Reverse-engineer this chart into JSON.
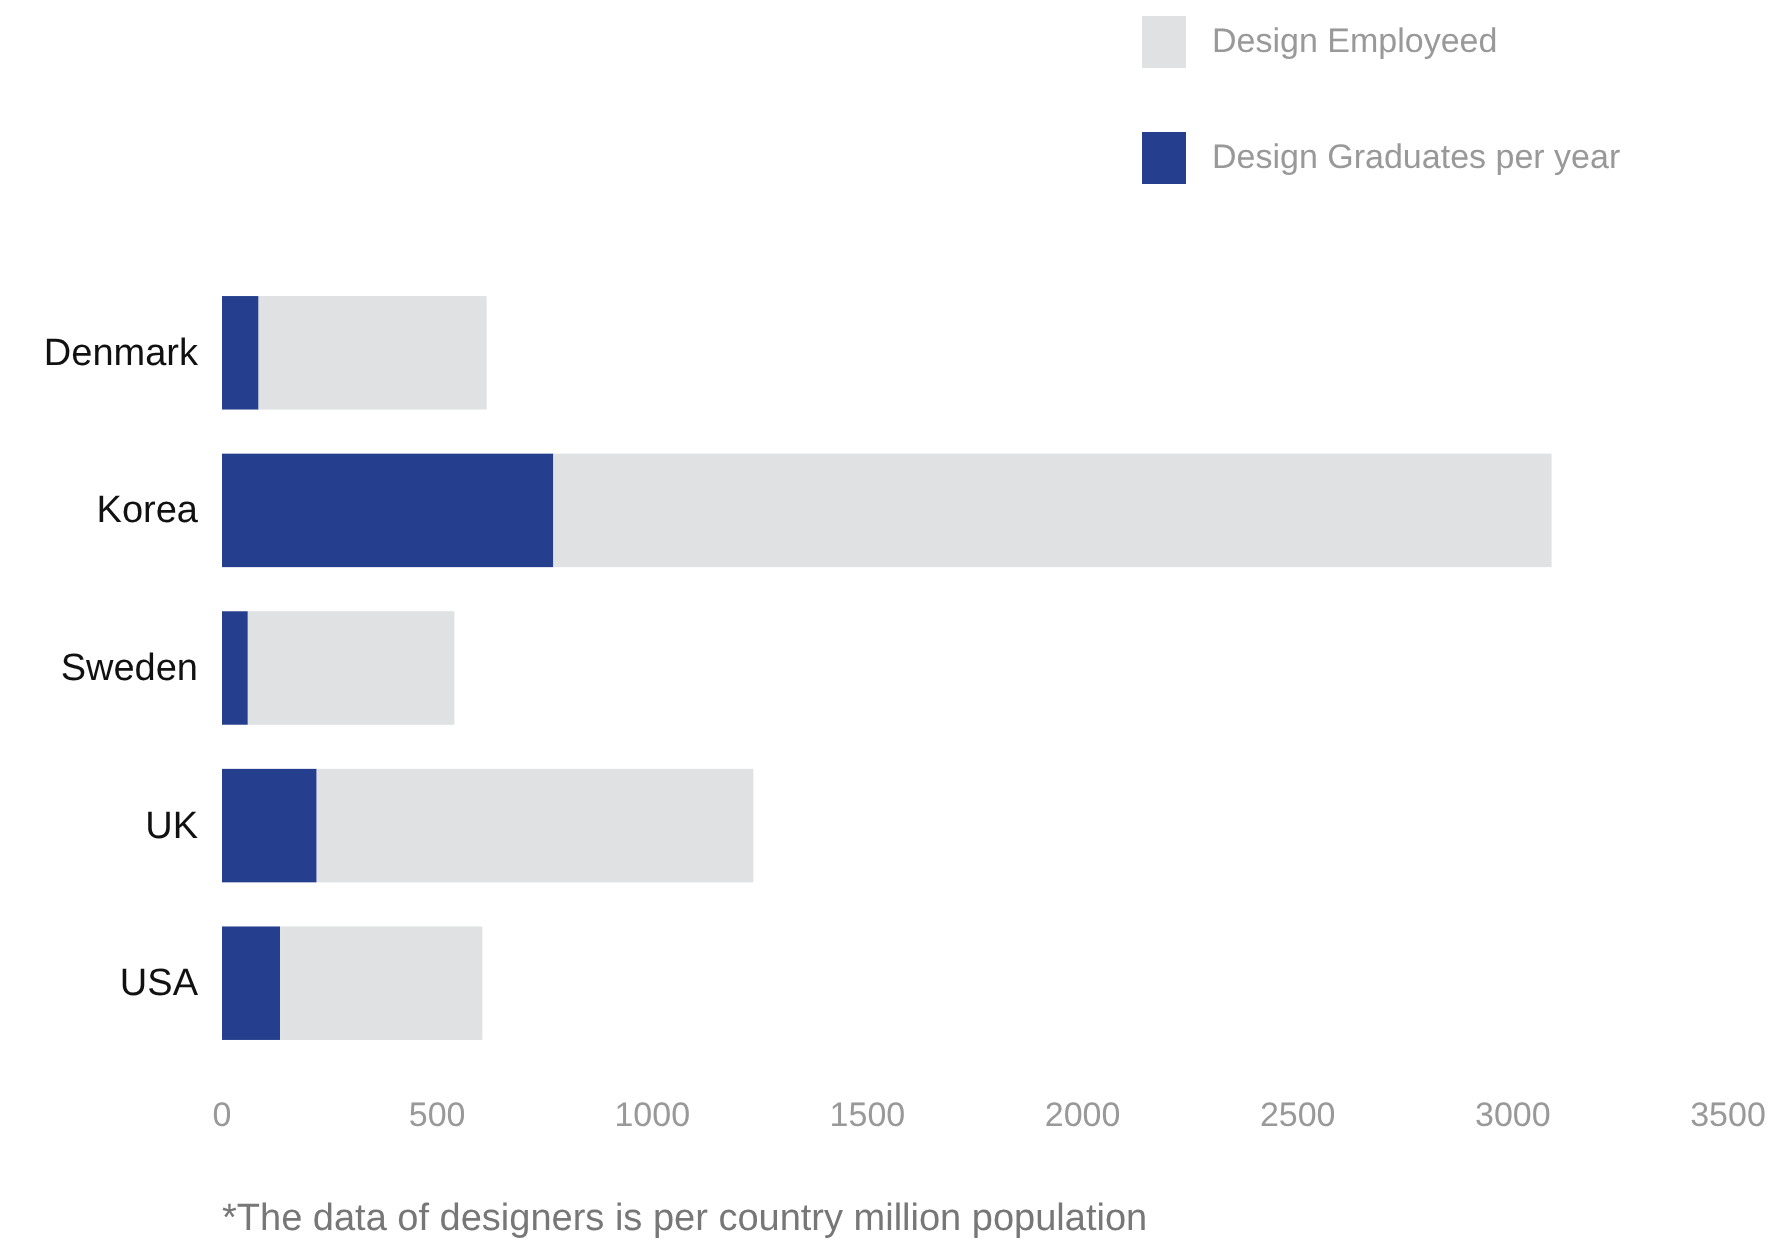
{
  "chart_data": {
    "type": "bar",
    "orientation": "horizontal",
    "stacked": true,
    "categories": [
      "Denmark",
      "Korea",
      "Sweden",
      "UK",
      "USA"
    ],
    "series": [
      {
        "name": "Design Graduates per year",
        "color": "#253f8e",
        "values": [
          85,
          770,
          60,
          220,
          135
        ]
      },
      {
        "name": "Design Employeed",
        "color": "#e0e1e3",
        "values": [
          530,
          2320,
          480,
          1015,
          470
        ]
      }
    ],
    "xlim": [
      0,
      3500
    ],
    "xticks": [
      0,
      500,
      1000,
      1500,
      2000,
      2500,
      3000,
      3500
    ],
    "grid": false,
    "legend": "top right",
    "annotations": [
      "*The data of designers is per country million population"
    ]
  }
}
